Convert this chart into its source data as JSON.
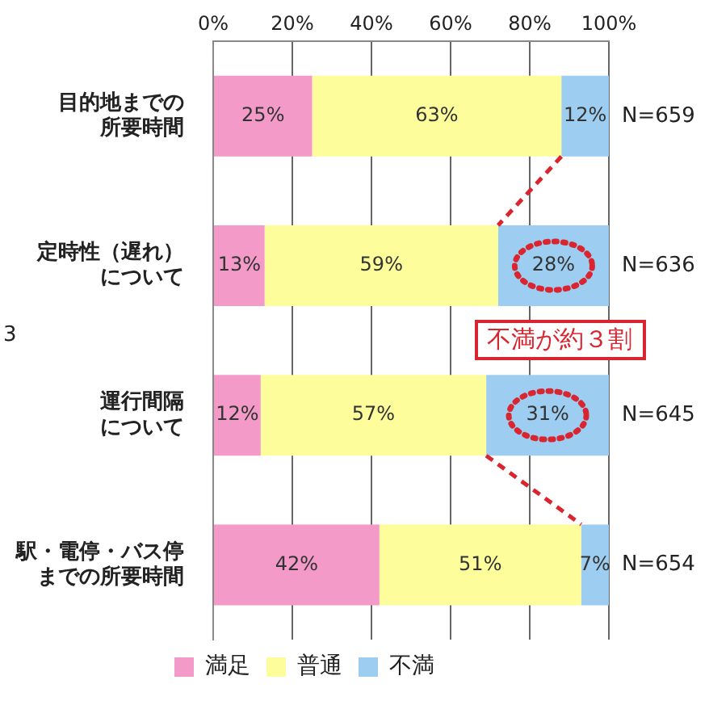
{
  "chart_data": {
    "type": "bar",
    "orientation": "horizontal",
    "stacked": true,
    "categories": [
      "目的地までの所要時間",
      "定時性（遅れ）について",
      "運行間隔について",
      "駅・電停・バス停までの所要時間"
    ],
    "series": [
      {
        "name": "満足",
        "color": "#f49ac9",
        "values": [
          25,
          13,
          12,
          42
        ],
        "value_labels": [
          "25%",
          "13%",
          "12%",
          "42%"
        ]
      },
      {
        "name": "普通",
        "color": "#fdfd9c",
        "values": [
          63,
          59,
          57,
          51
        ],
        "value_labels": [
          "63%",
          "59%",
          "57%",
          "51%"
        ]
      },
      {
        "name": "不満",
        "color": "#9dcdf0",
        "values": [
          12,
          28,
          31,
          7
        ],
        "value_labels": [
          "12%",
          "28%",
          "31%",
          "7%"
        ]
      }
    ],
    "xlim": [
      0,
      100
    ],
    "xticks": [
      {
        "value": 0,
        "label": "0%"
      },
      {
        "value": 20,
        "label": "20%"
      },
      {
        "value": 40,
        "label": "40%"
      },
      {
        "value": 60,
        "label": "60%"
      },
      {
        "value": 80,
        "label": "80%"
      },
      {
        "value": 100,
        "label": "100%"
      }
    ],
    "grid": "x",
    "legend": "bottom",
    "annotations": [
      "N=659",
      "N=636",
      "N=645",
      "N=654",
      "不満が約３割",
      "3"
    ]
  }
}
